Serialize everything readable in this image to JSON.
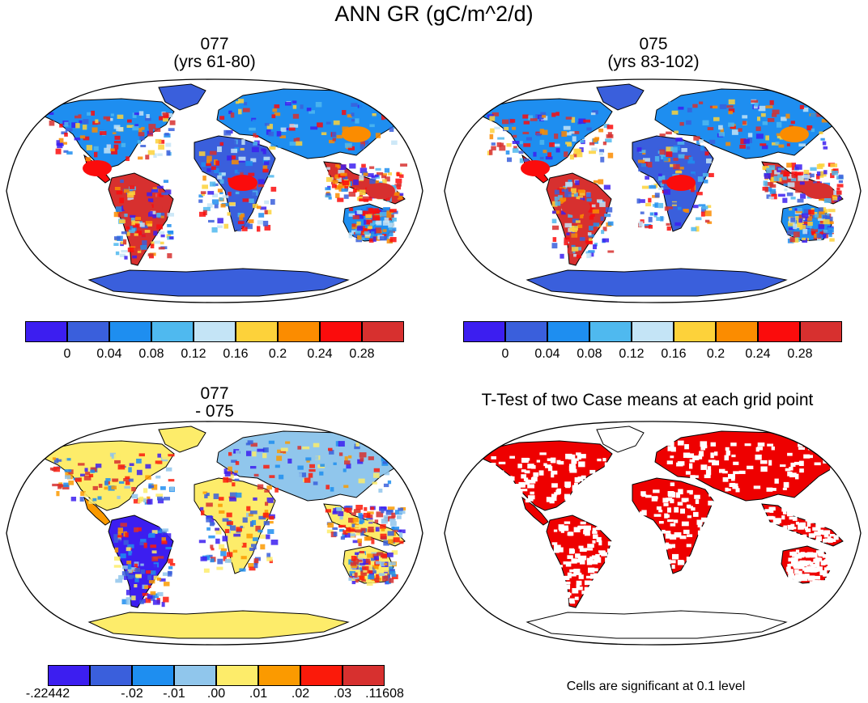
{
  "main_title": "ANN GR (gC/m^2/d)",
  "panels": [
    {
      "id": "p1",
      "title_line1": "077",
      "title_line2": "(yrs 61-80)",
      "palette": "abs"
    },
    {
      "id": "p2",
      "title_line1": "075",
      "title_line2": "(yrs 83-102)",
      "palette": "abs"
    },
    {
      "id": "p3",
      "title_line1": "077",
      "title_line2": "- 075",
      "palette": "diff"
    },
    {
      "id": "p4",
      "title_line1": "T-Test of two Case means at each grid point",
      "title_line2": "",
      "palette": "sig"
    }
  ],
  "colorbars": {
    "abs": {
      "colors": [
        "#3c1ef0",
        "#3a5fdc",
        "#1e8ef0",
        "#4fb9ef",
        "#c4e4f6",
        "#fdd23a",
        "#fb8c00",
        "#fb0c0c",
        "#d7302f"
      ],
      "labels": [
        "0",
        "0.04",
        "0.08",
        "0.12",
        "0.16",
        "0.2",
        "0.24",
        "0.28"
      ]
    },
    "diff": {
      "colors": [
        "#3c1ef0",
        "#3a5fdc",
        "#1e8ef0",
        "#90c6ec",
        "#fdec6a",
        "#fb9a00",
        "#fb1a0a",
        "#d7302f"
      ],
      "labels": [
        "-.22442",
        "-.02",
        "-.01",
        ".00",
        ".01",
        ".02",
        ".03",
        ".11608"
      ]
    }
  },
  "significance_note": "Cells are significant at 0.1 level",
  "colors": {
    "land_outline": "#000000",
    "sig_fill": "#ee0000",
    "antarctica_abs": "#3a5fdc",
    "antarctica_diff": "#fdec6a"
  }
}
